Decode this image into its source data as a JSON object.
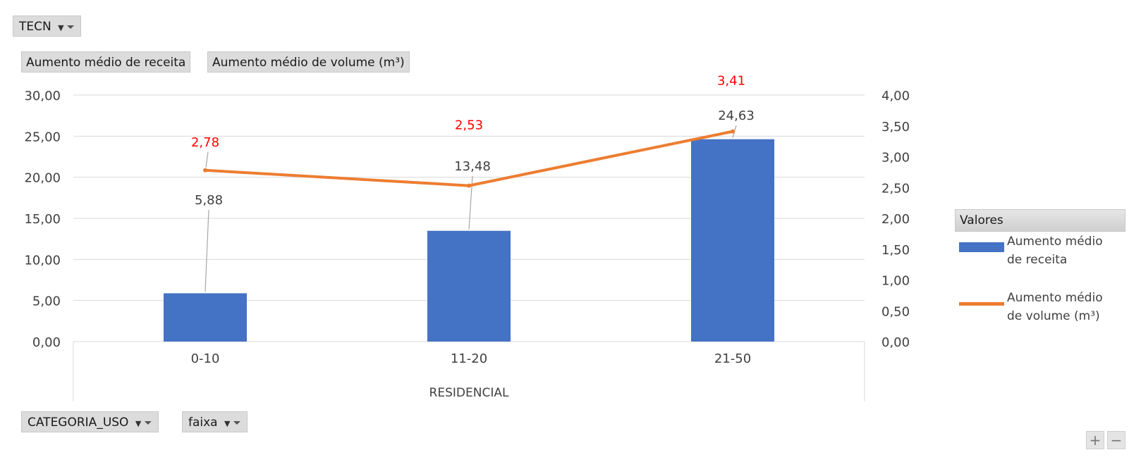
{
  "filters": {
    "top": {
      "label": "TECN"
    },
    "bottom": [
      {
        "label": "CATEGORIA_USO"
      },
      {
        "label": "faixa"
      }
    ]
  },
  "value_buttons": [
    "Aumento médio de receita",
    "Aumento médio de volume (m³)"
  ],
  "legend": {
    "title": "Valores",
    "items": [
      {
        "label_line1": "Aumento médio",
        "label_line2": "de receita",
        "color": "#4472c4",
        "kind": "bar"
      },
      {
        "label_line1": "Aumento médio",
        "label_line2": "de volume (m³)",
        "color": "#ed7d31",
        "kind": "line"
      }
    ]
  },
  "controls": {
    "plus": "+",
    "minus": "−"
  },
  "chart_data": {
    "type": "bar",
    "group_label": "RESIDENCIAL",
    "categories": [
      "0-10",
      "11-20",
      "21-50"
    ],
    "series": [
      {
        "name": "Aumento médio de receita",
        "type": "bar",
        "axis": "left",
        "values": [
          5.88,
          13.48,
          24.63
        ],
        "labels": [
          "5,88",
          "13,48",
          "24,63"
        ],
        "color": "#4472c4"
      },
      {
        "name": "Aumento médio de volume (m³)",
        "type": "line",
        "axis": "right",
        "values": [
          2.78,
          2.53,
          3.41
        ],
        "labels": [
          "2,78",
          "2,53",
          "3,41"
        ],
        "color": "#ed7d31",
        "label_color": "#ff0000"
      }
    ],
    "y_left": {
      "min": 0,
      "max": 30,
      "ticks": [
        "0,00",
        "5,00",
        "10,00",
        "15,00",
        "20,00",
        "25,00",
        "30,00"
      ]
    },
    "y_right": {
      "min": 0,
      "max": 4,
      "ticks": [
        "0,00",
        "0,50",
        "1,00",
        "1,50",
        "2,00",
        "2,50",
        "3,00",
        "3,50",
        "4,00"
      ]
    },
    "grid": true
  }
}
